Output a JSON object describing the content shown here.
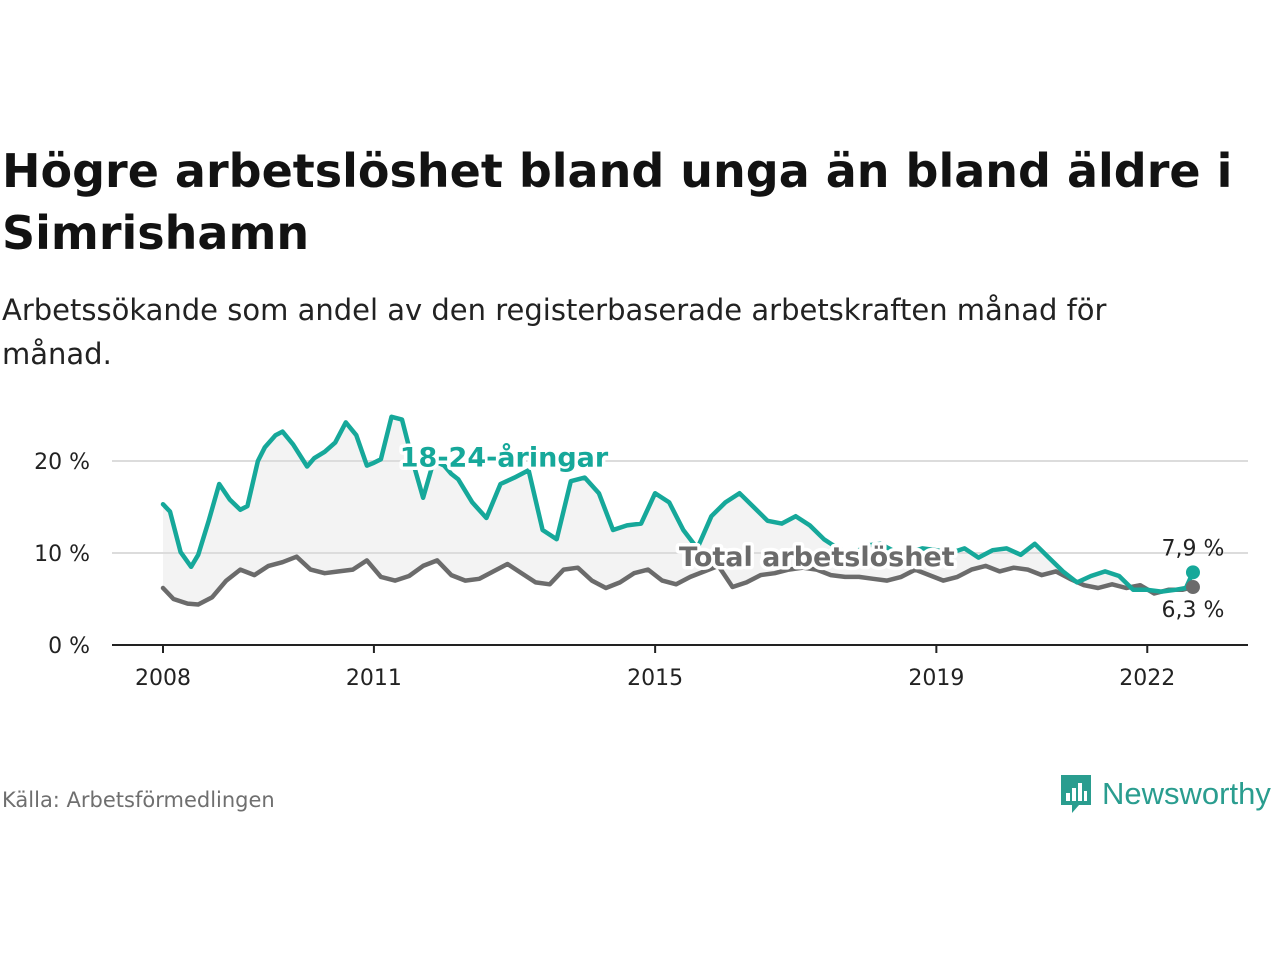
{
  "title": "Högre arbetslöshet bland unga än bland äldre i Simrishamn",
  "subtitle": "Arbetssökande som andel av den registerbaserade arbetskraften månad för månad.",
  "source": "Källa: Arbetsförmedlingen",
  "brand": "Newsworthy",
  "colors": {
    "youth": "#16a89a",
    "total": "#6b6b6b",
    "band": "#f3f3f3",
    "grid": "#dcdcdc",
    "brand": "#2a9d8f"
  },
  "chart_data": {
    "type": "line",
    "xlabel": "",
    "ylabel": "",
    "xlim": [
      2008,
      2022.75
    ],
    "ylim": [
      0,
      25
    ],
    "y_ticks": [
      0,
      10,
      20
    ],
    "y_tick_labels": [
      "0 %",
      "10 %",
      "20 %"
    ],
    "x_ticks": [
      2008,
      2011,
      2015,
      2019,
      2022
    ],
    "x_tick_labels": [
      "2008",
      "2011",
      "2015",
      "2019",
      "2022"
    ],
    "series": [
      {
        "name": "18-24-åringar",
        "x": [
          2008.0,
          2008.1,
          2008.25,
          2008.4,
          2008.5,
          2008.65,
          2008.8,
          2008.95,
          2009.1,
          2009.2,
          2009.35,
          2009.45,
          2009.6,
          2009.7,
          2009.85,
          2010.05,
          2010.15,
          2010.3,
          2010.45,
          2010.6,
          2010.75,
          2010.9,
          2011.0,
          2011.1,
          2011.25,
          2011.4,
          2011.55,
          2011.7,
          2011.85,
          2012.0,
          2012.1,
          2012.2,
          2012.4,
          2012.6,
          2012.8,
          2013.0,
          2013.2,
          2013.4,
          2013.6,
          2013.8,
          2014.0,
          2014.2,
          2014.4,
          2014.6,
          2014.8,
          2015.0,
          2015.2,
          2015.4,
          2015.6,
          2015.8,
          2016.0,
          2016.2,
          2016.4,
          2016.6,
          2016.8,
          2017.0,
          2017.2,
          2017.4,
          2017.6,
          2017.8,
          2018.0,
          2018.2,
          2018.4,
          2018.6,
          2018.8,
          2019.0,
          2019.2,
          2019.4,
          2019.6,
          2019.8,
          2020.0,
          2020.2,
          2020.4,
          2020.6,
          2020.8,
          2021.0,
          2021.2,
          2021.4,
          2021.6,
          2021.8,
          2022.0,
          2022.2,
          2022.4,
          2022.55,
          2022.65
        ],
        "values": [
          15.3,
          14.5,
          10.1,
          8.5,
          9.8,
          13.5,
          17.5,
          15.8,
          14.7,
          15.1,
          20.0,
          21.5,
          22.8,
          23.2,
          21.8,
          19.4,
          20.3,
          21.0,
          22.0,
          24.2,
          22.8,
          19.5,
          19.8,
          20.2,
          24.8,
          24.5,
          20.0,
          16.0,
          20.0,
          19.5,
          18.6,
          18.0,
          15.5,
          13.8,
          17.5,
          18.2,
          19.0,
          12.5,
          11.5,
          17.8,
          18.2,
          16.5,
          12.5,
          13.0,
          13.2,
          16.5,
          15.5,
          12.5,
          10.5,
          14.0,
          15.5,
          16.5,
          15.0,
          13.5,
          13.2,
          14.0,
          13.0,
          11.5,
          10.5,
          9.8,
          10.8,
          11.0,
          10.2,
          10.0,
          10.5,
          10.3,
          10.0,
          10.5,
          9.5,
          10.3,
          10.5,
          9.8,
          11.0,
          9.5,
          8.0,
          6.8,
          7.5,
          8.0,
          7.5,
          6.0,
          6.0,
          5.8,
          6.0,
          6.2,
          7.9
        ]
      },
      {
        "name": "Total arbetslöshet",
        "x": [
          2008.0,
          2008.15,
          2008.35,
          2008.5,
          2008.7,
          2008.9,
          2009.1,
          2009.3,
          2009.5,
          2009.7,
          2009.9,
          2010.1,
          2010.3,
          2010.5,
          2010.7,
          2010.9,
          2011.1,
          2011.3,
          2011.5,
          2011.7,
          2011.9,
          2012.1,
          2012.3,
          2012.5,
          2012.7,
          2012.9,
          2013.1,
          2013.3,
          2013.5,
          2013.7,
          2013.9,
          2014.1,
          2014.3,
          2014.5,
          2014.7,
          2014.9,
          2015.1,
          2015.3,
          2015.5,
          2015.7,
          2015.9,
          2016.1,
          2016.3,
          2016.5,
          2016.7,
          2016.9,
          2017.1,
          2017.3,
          2017.5,
          2017.7,
          2017.9,
          2018.1,
          2018.3,
          2018.5,
          2018.7,
          2018.9,
          2019.1,
          2019.3,
          2019.5,
          2019.7,
          2019.9,
          2020.1,
          2020.3,
          2020.5,
          2020.7,
          2020.9,
          2021.1,
          2021.3,
          2021.5,
          2021.7,
          2021.9,
          2022.1,
          2022.3,
          2022.5,
          2022.65
        ],
        "values": [
          6.2,
          5.0,
          4.5,
          4.4,
          5.2,
          7.0,
          8.2,
          7.6,
          8.6,
          9.0,
          9.6,
          8.2,
          7.8,
          8.0,
          8.2,
          9.2,
          7.4,
          7.0,
          7.5,
          8.6,
          9.2,
          7.6,
          7.0,
          7.2,
          8.0,
          8.8,
          7.8,
          6.8,
          6.6,
          8.2,
          8.4,
          7.0,
          6.2,
          6.8,
          7.8,
          8.2,
          7.0,
          6.6,
          7.4,
          8.0,
          8.6,
          6.3,
          6.8,
          7.6,
          7.8,
          8.2,
          8.4,
          8.2,
          7.6,
          7.4,
          7.4,
          7.2,
          7.0,
          7.4,
          8.2,
          7.6,
          7.0,
          7.4,
          8.2,
          8.6,
          8.0,
          8.4,
          8.2,
          7.6,
          8.0,
          7.2,
          6.5,
          6.2,
          6.6,
          6.2,
          6.5,
          5.6,
          6.0,
          6.0,
          6.3
        ]
      }
    ],
    "end_labels": [
      "7,9 %",
      "6,3 %"
    ]
  }
}
